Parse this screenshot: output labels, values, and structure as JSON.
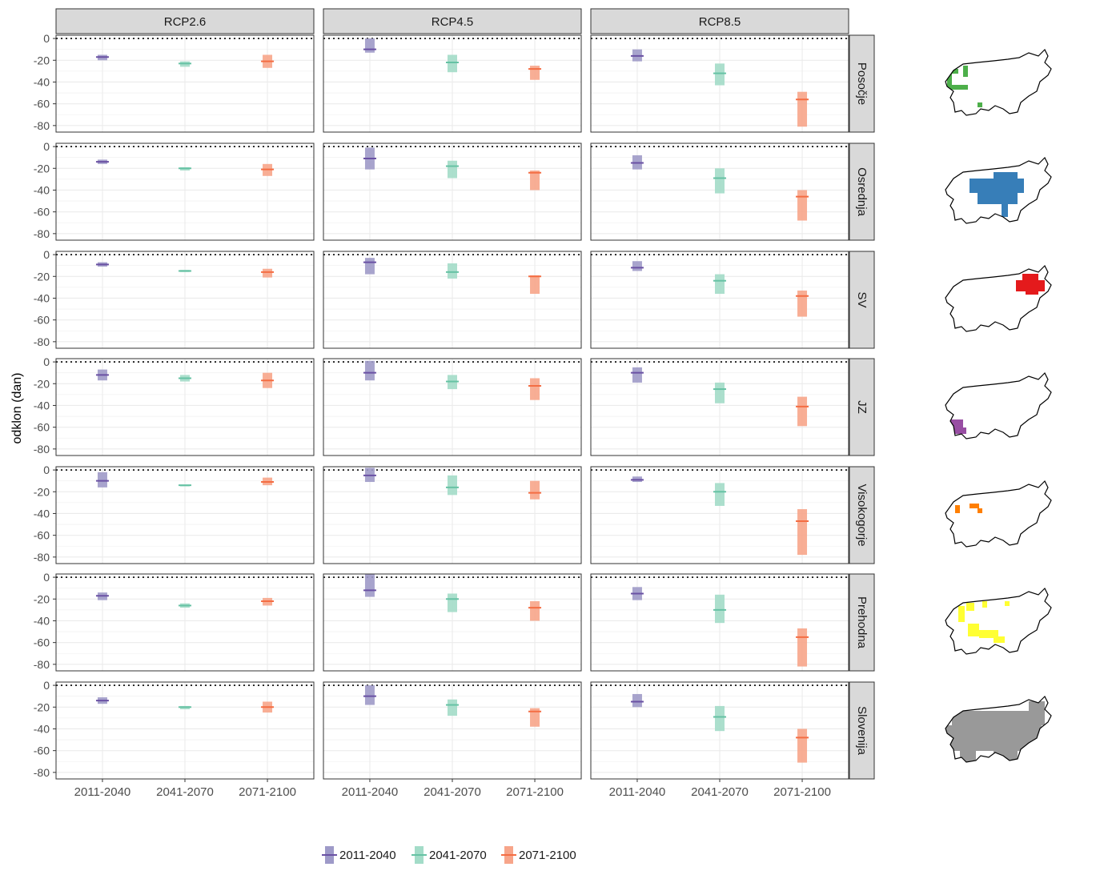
{
  "chart_data": {
    "type": "range-bar-facet",
    "ylabel": "odklon (dan)",
    "xlabel": "",
    "ylim": [
      -86,
      3
    ],
    "yticks": [
      0,
      -20,
      -40,
      -60,
      -80
    ],
    "reference_line": 0,
    "grid": true,
    "legend_position": "bottom",
    "columns": [
      "RCP2.6",
      "RCP4.5",
      "RCP8.5"
    ],
    "rows": [
      "Posočje",
      "Osrednja",
      "SV",
      "JZ",
      "Visokogorje",
      "Prehodna",
      "Slovenija"
    ],
    "categories": [
      "2011-2040",
      "2041-2070",
      "2071-2100"
    ],
    "series": [
      {
        "name": "2011-2040",
        "color": "#6a51a3",
        "fill": "#9e9ac8"
      },
      {
        "name": "2041-2070",
        "color": "#66c2a4",
        "fill": "#a3dcc8"
      },
      {
        "name": "2071-2100",
        "color": "#f46d43",
        "fill": "#f7a58a"
      }
    ],
    "panels": [
      [
        [
          {
            "min": -20,
            "max": -15,
            "median": -17
          },
          {
            "min": -26,
            "max": -21,
            "median": -23
          },
          {
            "min": -27,
            "max": -15,
            "median": -21
          }
        ],
        [
          {
            "min": -13,
            "max": 0,
            "median": -10
          },
          {
            "min": -31,
            "max": -15,
            "median": -22
          },
          {
            "min": -38,
            "max": -25,
            "median": -28
          }
        ],
        [
          {
            "min": -21,
            "max": -10,
            "median": -16
          },
          {
            "min": -43,
            "max": -23,
            "median": -32
          },
          {
            "min": -81,
            "max": -49,
            "median": -56
          }
        ]
      ],
      [
        [
          {
            "min": -16,
            "max": -12,
            "median": -14
          },
          {
            "min": -22,
            "max": -19,
            "median": -20
          },
          {
            "min": -27,
            "max": -16,
            "median": -21
          }
        ],
        [
          {
            "min": -21,
            "max": -1,
            "median": -11
          },
          {
            "min": -29,
            "max": -13,
            "median": -18
          },
          {
            "min": -40,
            "max": -22,
            "median": -24
          }
        ],
        [
          {
            "min": -21,
            "max": -8,
            "median": -15
          },
          {
            "min": -43,
            "max": -20,
            "median": -29
          },
          {
            "min": -68,
            "max": -40,
            "median": -46
          }
        ]
      ],
      [
        [
          {
            "min": -11,
            "max": -7,
            "median": -9
          },
          {
            "min": -16,
            "max": -14,
            "median": -15
          },
          {
            "min": -21,
            "max": -13,
            "median": -16
          }
        ],
        [
          {
            "min": -18,
            "max": -3,
            "median": -7
          },
          {
            "min": -22,
            "max": -8,
            "median": -16
          },
          {
            "min": -36,
            "max": -19,
            "median": -20
          }
        ],
        [
          {
            "min": -15,
            "max": -6,
            "median": -12
          },
          {
            "min": -36,
            "max": -18,
            "median": -24
          },
          {
            "min": -57,
            "max": -33,
            "median": -38
          }
        ]
      ],
      [
        [
          {
            "min": -17,
            "max": -7,
            "median": -12
          },
          {
            "min": -18,
            "max": -12,
            "median": -15
          },
          {
            "min": -24,
            "max": -10,
            "median": -17
          }
        ],
        [
          {
            "min": -17,
            "max": 1,
            "median": -10
          },
          {
            "min": -25,
            "max": -12,
            "median": -18
          },
          {
            "min": -35,
            "max": -15,
            "median": -22
          }
        ],
        [
          {
            "min": -19,
            "max": -5,
            "median": -10
          },
          {
            "min": -38,
            "max": -19,
            "median": -25
          },
          {
            "min": -59,
            "max": -32,
            "median": -41
          }
        ]
      ],
      [
        [
          {
            "min": -16,
            "max": -2,
            "median": -10
          },
          {
            "min": -15,
            "max": -14,
            "median": -14
          },
          {
            "min": -14,
            "max": -7,
            "median": -11
          }
        ],
        [
          {
            "min": -11,
            "max": 2,
            "median": -5
          },
          {
            "min": -23,
            "max": -5,
            "median": -16
          },
          {
            "min": -27,
            "max": -10,
            "median": -21
          }
        ],
        [
          {
            "min": -11,
            "max": -6,
            "median": -9
          },
          {
            "min": -33,
            "max": -12,
            "median": -20
          },
          {
            "min": -78,
            "max": -36,
            "median": -47
          }
        ]
      ],
      [
        [
          {
            "min": -21,
            "max": -14,
            "median": -17
          },
          {
            "min": -28,
            "max": -24,
            "median": -26
          },
          {
            "min": -26,
            "max": -19,
            "median": -22
          }
        ],
        [
          {
            "min": -18,
            "max": 3,
            "median": -12
          },
          {
            "min": -32,
            "max": -15,
            "median": -20
          },
          {
            "min": -40,
            "max": -22,
            "median": -28
          }
        ],
        [
          {
            "min": -21,
            "max": -9,
            "median": -15
          },
          {
            "min": -42,
            "max": -16,
            "median": -30
          },
          {
            "min": -82,
            "max": -47,
            "median": -55
          }
        ]
      ],
      [
        [
          {
            "min": -17,
            "max": -11,
            "median": -14
          },
          {
            "min": -22,
            "max": -19,
            "median": -20
          },
          {
            "min": -25,
            "max": -15,
            "median": -20
          }
        ],
        [
          {
            "min": -18,
            "max": 0,
            "median": -10
          },
          {
            "min": -28,
            "max": -13,
            "median": -18
          },
          {
            "min": -38,
            "max": -21,
            "median": -24
          }
        ],
        [
          {
            "min": -20,
            "max": -8,
            "median": -15
          },
          {
            "min": -42,
            "max": -19,
            "median": -29
          },
          {
            "min": -71,
            "max": -40,
            "median": -48
          }
        ]
      ]
    ],
    "maps": [
      {
        "row": "Posočje",
        "color": "#4daf4a"
      },
      {
        "row": "Osrednja",
        "color": "#377eb8"
      },
      {
        "row": "SV",
        "color": "#e41a1c"
      },
      {
        "row": "JZ",
        "color": "#984ea3"
      },
      {
        "row": "Visokogorje",
        "color": "#ff7f00"
      },
      {
        "row": "Prehodna",
        "color": "#ffff33"
      },
      {
        "row": "Slovenija",
        "color": "#999999"
      }
    ]
  }
}
